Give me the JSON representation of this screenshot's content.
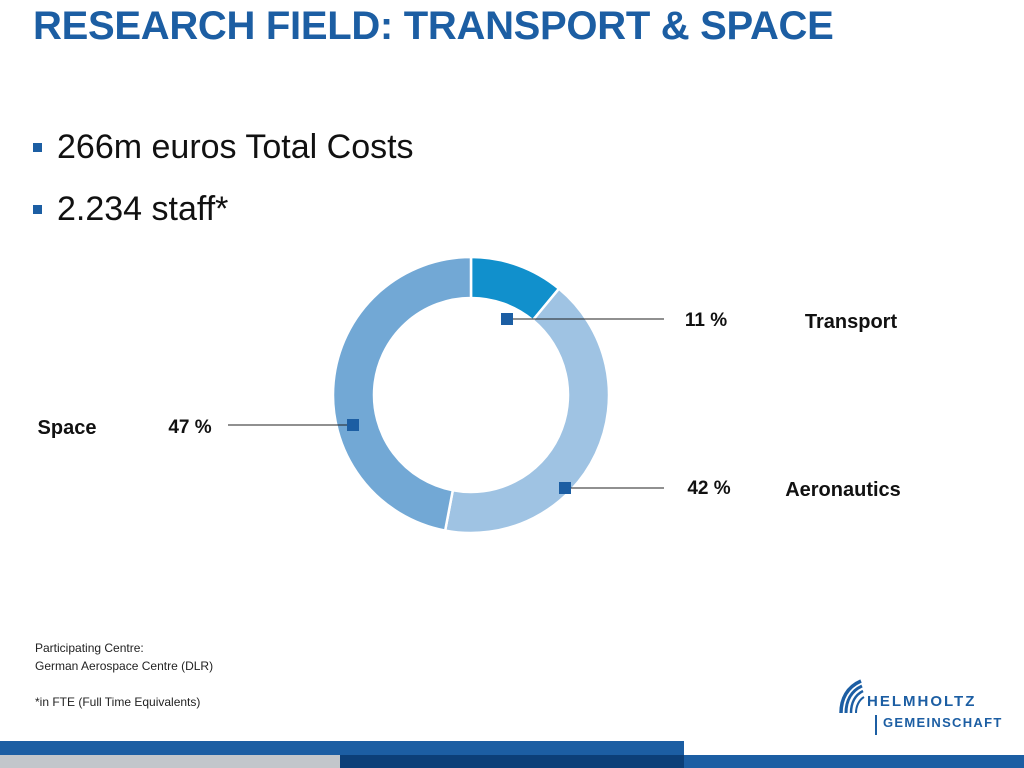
{
  "title": "RESEARCH FIELD: TRANSPORT & SPACE",
  "bullets": [
    "266m euros Total Costs",
    "2.234 staff*"
  ],
  "chart_data": {
    "type": "pie",
    "donut": true,
    "slices": [
      {
        "name": "Transport",
        "value": 11,
        "label": "11 %",
        "color": "#1190cc"
      },
      {
        "name": "Aeronautics",
        "value": 42,
        "label": "42 %",
        "color": "#9fc3e3"
      },
      {
        "name": "Space",
        "value": 47,
        "label": "47 %",
        "color": "#72a8d5"
      }
    ],
    "marker_color": "#1c5ea3"
  },
  "footnotes": {
    "line1": "Participating Centre:",
    "line2": "German Aerospace Centre (DLR)",
    "line3": "*in FTE (Full Time Equivalents)"
  },
  "logo": {
    "line1": "HELMHOLTZ",
    "line2": "GEMEINSCHAFT"
  },
  "colors": {
    "brand": "#1c5ea3",
    "footer_dark": "#0c3f78",
    "footer_grey": "#c2c6cb"
  }
}
